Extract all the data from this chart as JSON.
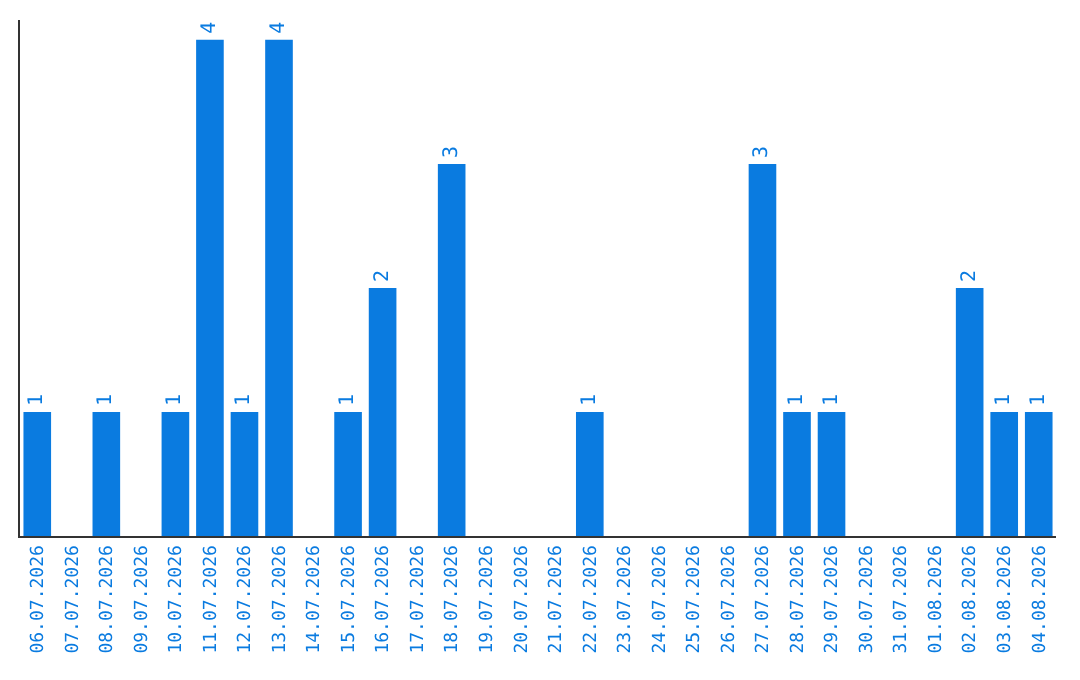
{
  "chart_data": {
    "type": "bar",
    "categories": [
      "06.07.2026",
      "07.07.2026",
      "08.07.2026",
      "09.07.2026",
      "10.07.2026",
      "11.07.2026",
      "12.07.2026",
      "13.07.2026",
      "14.07.2026",
      "15.07.2026",
      "16.07.2026",
      "17.07.2026",
      "18.07.2026",
      "19.07.2026",
      "20.07.2026",
      "21.07.2026",
      "22.07.2026",
      "23.07.2026",
      "24.07.2026",
      "25.07.2026",
      "26.07.2026",
      "27.07.2026",
      "28.07.2026",
      "29.07.2026",
      "30.07.2026",
      "31.07.2026",
      "01.08.2026",
      "02.08.2026",
      "03.08.2026",
      "04.08.2026"
    ],
    "values": [
      1,
      0,
      1,
      0,
      1,
      4,
      1,
      4,
      0,
      1,
      2,
      0,
      3,
      0,
      0,
      0,
      1,
      0,
      0,
      0,
      0,
      3,
      1,
      1,
      0,
      0,
      0,
      2,
      1,
      1
    ],
    "value_labels": [
      "1",
      null,
      "1",
      null,
      "1",
      "4",
      "1",
      "4",
      null,
      "1",
      "2",
      null,
      "3",
      null,
      null,
      null,
      "1",
      null,
      null,
      null,
      null,
      "3",
      "1",
      "1",
      null,
      null,
      null,
      "2",
      "1",
      "1"
    ],
    "color": "#0a7be0"
  }
}
